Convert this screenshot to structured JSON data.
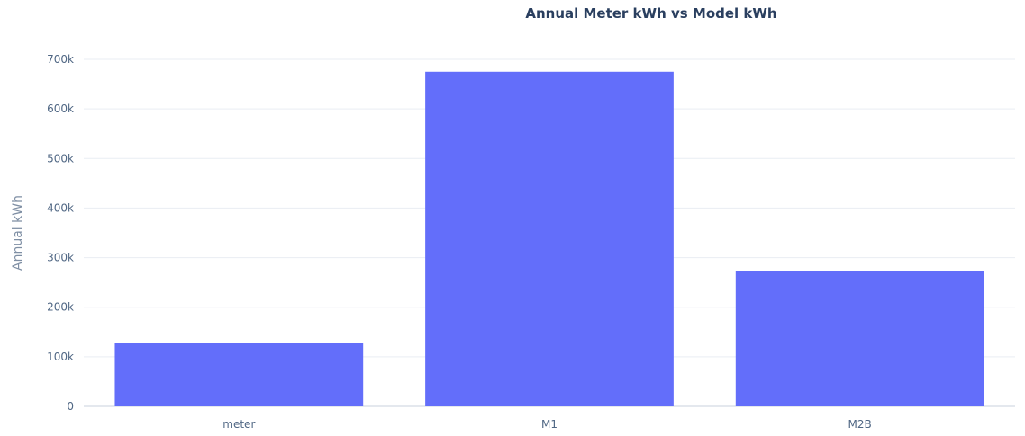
{
  "chart_data": {
    "type": "bar",
    "title": "Annual Meter kWh vs Model kWh",
    "xlabel": "",
    "ylabel": "Annual kWh",
    "categories": [
      "meter",
      "M1",
      "M2B"
    ],
    "values": [
      128000,
      675000,
      273000
    ],
    "ylim": [
      0,
      700000
    ],
    "yticks": [
      0,
      100000,
      200000,
      300000,
      400000,
      500000,
      600000,
      700000
    ],
    "ytick_labels": [
      "0",
      "100k",
      "200k",
      "300k",
      "400k",
      "500k",
      "600k",
      "700k"
    ],
    "grid": true,
    "bar_color": "#636efa"
  }
}
